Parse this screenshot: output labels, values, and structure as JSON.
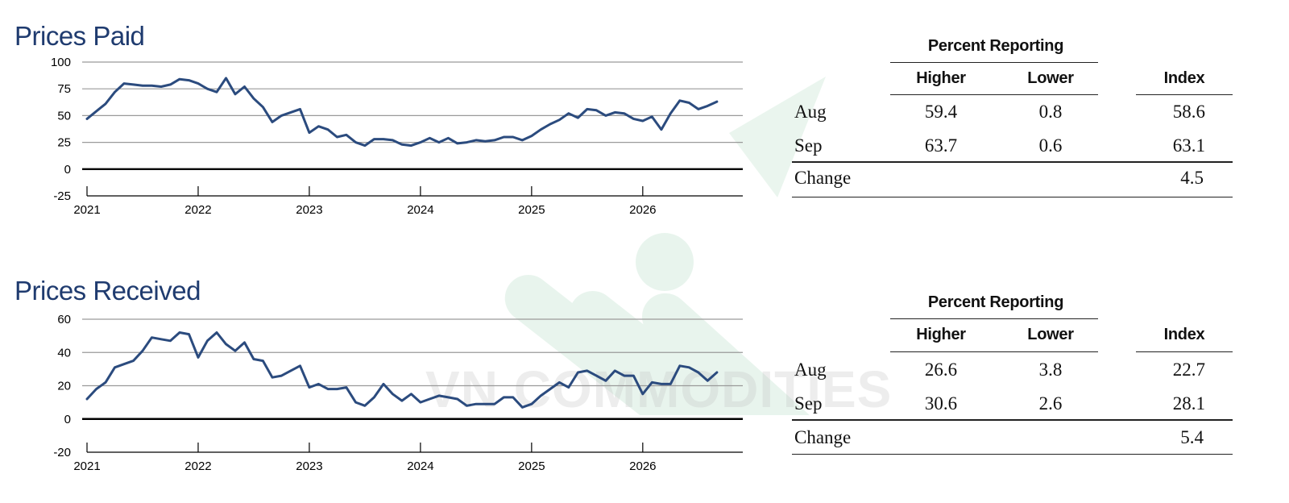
{
  "watermark": {
    "text": "VN COMMODITIES",
    "color": "#2e9e5b"
  },
  "chart_data": [
    {
      "type": "line",
      "title": "Prices Paid",
      "x_ticks": [
        "2021",
        "2022",
        "2023",
        "2024",
        "2025",
        "2026"
      ],
      "y_ticks": [
        "100",
        "75",
        "50",
        "25",
        "0",
        "-25"
      ],
      "ylim": [
        -25,
        100
      ],
      "xlim": [
        2021.0,
        2026.9
      ],
      "color": "#2b4b7e",
      "x": [
        2021.0,
        2021.083,
        2021.167,
        2021.25,
        2021.333,
        2021.417,
        2021.5,
        2021.583,
        2021.667,
        2021.75,
        2021.833,
        2021.917,
        2022.0,
        2022.083,
        2022.167,
        2022.25,
        2022.333,
        2022.417,
        2022.5,
        2022.583,
        2022.667,
        2022.75,
        2022.833,
        2022.917,
        2023.0,
        2023.083,
        2023.167,
        2023.25,
        2023.333,
        2023.417,
        2023.5,
        2023.583,
        2023.667,
        2023.75,
        2023.833,
        2023.917,
        2024.0,
        2024.083,
        2024.167,
        2024.25,
        2024.333,
        2024.417,
        2024.5,
        2024.583,
        2024.667,
        2024.75,
        2024.833,
        2024.917,
        2025.0,
        2025.083,
        2025.167,
        2025.25,
        2025.333,
        2025.417,
        2025.5,
        2025.583,
        2025.667,
        2025.75,
        2025.833,
        2025.917,
        2026.0,
        2026.083,
        2026.167,
        2026.25,
        2026.333,
        2026.417,
        2026.5,
        2026.583,
        2026.667
      ],
      "values": [
        47,
        54,
        61,
        72,
        80,
        79,
        78,
        78,
        77,
        79,
        84,
        83,
        80,
        75,
        72,
        85,
        70,
        77,
        66,
        58,
        44,
        50,
        53,
        56,
        34,
        40,
        37,
        30,
        32,
        25,
        22,
        28,
        28,
        27,
        23,
        22,
        25,
        29,
        25,
        29,
        24,
        25,
        27,
        26,
        27,
        30,
        30,
        27,
        31,
        37,
        42,
        46,
        52,
        48,
        56,
        55,
        50,
        53,
        52,
        47,
        45,
        49,
        37,
        52,
        64,
        62,
        56,
        59,
        63
      ]
    },
    {
      "type": "line",
      "title": "Prices Received",
      "x_ticks": [
        "2021",
        "2022",
        "2023",
        "2024",
        "2025",
        "2026"
      ],
      "y_ticks": [
        "60",
        "40",
        "20",
        "0",
        "-20"
      ],
      "ylim": [
        -20,
        60
      ],
      "xlim": [
        2021.0,
        2026.9
      ],
      "color": "#2b4b7e",
      "x": [
        2021.0,
        2021.083,
        2021.167,
        2021.25,
        2021.333,
        2021.417,
        2021.5,
        2021.583,
        2021.667,
        2021.75,
        2021.833,
        2021.917,
        2022.0,
        2022.083,
        2022.167,
        2022.25,
        2022.333,
        2022.417,
        2022.5,
        2022.583,
        2022.667,
        2022.75,
        2022.833,
        2022.917,
        2023.0,
        2023.083,
        2023.167,
        2023.25,
        2023.333,
        2023.417,
        2023.5,
        2023.583,
        2023.667,
        2023.75,
        2023.833,
        2023.917,
        2024.0,
        2024.083,
        2024.167,
        2024.25,
        2024.333,
        2024.417,
        2024.5,
        2024.583,
        2024.667,
        2024.75,
        2024.833,
        2024.917,
        2025.0,
        2025.083,
        2025.167,
        2025.25,
        2025.333,
        2025.417,
        2025.5,
        2025.583,
        2025.667,
        2025.75,
        2025.833,
        2025.917,
        2026.0,
        2026.083,
        2026.167,
        2026.25,
        2026.333,
        2026.417,
        2026.5,
        2026.583,
        2026.667
      ],
      "values": [
        12,
        18,
        22,
        31,
        33,
        35,
        41,
        49,
        48,
        47,
        52,
        51,
        37,
        47,
        52,
        45,
        41,
        46,
        36,
        35,
        25,
        26,
        29,
        32,
        19,
        21,
        18,
        18,
        19,
        10,
        8,
        13,
        21,
        15,
        11,
        15,
        10,
        12,
        14,
        13,
        12,
        8,
        9,
        9,
        9,
        13,
        13,
        7,
        9,
        14,
        18,
        22,
        19,
        28,
        29,
        26,
        23,
        29,
        26,
        26,
        15,
        22,
        21,
        21,
        32,
        31,
        28,
        23,
        28
      ]
    }
  ],
  "tables": [
    {
      "group_header": "Percent Reporting",
      "columns": [
        "Higher",
        "Lower",
        "Index"
      ],
      "rows": [
        {
          "label": "Aug",
          "higher": "59.4",
          "lower": "0.8",
          "index": "58.6"
        },
        {
          "label": "Sep",
          "higher": "63.7",
          "lower": "0.6",
          "index": "63.1"
        }
      ],
      "change": {
        "label": "Change",
        "index": "4.5"
      }
    },
    {
      "group_header": "Percent Reporting",
      "columns": [
        "Higher",
        "Lower",
        "Index"
      ],
      "rows": [
        {
          "label": "Aug",
          "higher": "26.6",
          "lower": "3.8",
          "index": "22.7"
        },
        {
          "label": "Sep",
          "higher": "30.6",
          "lower": "2.6",
          "index": "28.1"
        }
      ],
      "change": {
        "label": "Change",
        "index": "5.4"
      }
    }
  ]
}
